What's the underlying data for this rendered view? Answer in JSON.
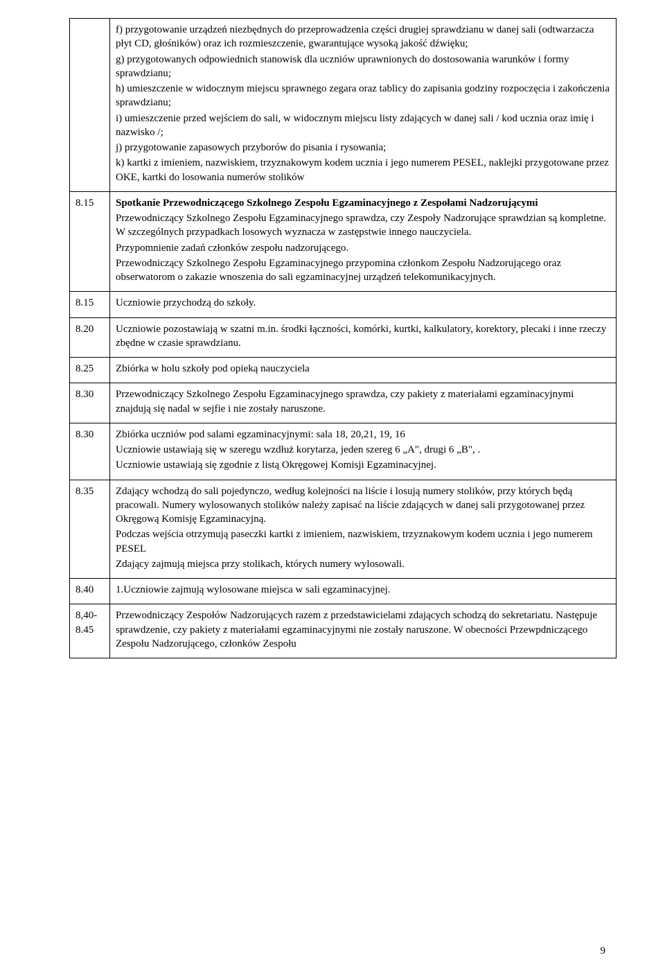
{
  "rows": [
    {
      "time": "",
      "paras": [
        "f) przygotowanie urządzeń niezbędnych do przeprowadzenia części drugiej sprawdzianu w danej sali (odtwarzacza płyt CD, głośników) oraz ich rozmieszczenie, gwarantujące wysoką jakość dźwięku;",
        "g) przygotowanych odpowiednich stanowisk dla uczniów uprawnionych do dostosowania warunków i formy sprawdzianu;",
        "h) umieszczenie w widocznym miejscu sprawnego zegara oraz tablicy  do zapisania godziny rozpoczęcia i zakończenia sprawdzianu;",
        "i) umieszczenie przed wejściem do sali, w widocznym miejscu listy zdających w danej sali  / kod ucznia oraz imię i nazwisko /;",
        "j) przygotowanie  zapasowych przyborów do pisania i rysowania;",
        "k) kartki z imieniem, nazwiskiem, trzyznakowym kodem ucznia i jego numerem PESEL, naklejki przygotowane przez OKE, kartki do losowania numerów stolików"
      ]
    },
    {
      "time": "8.15",
      "bold_lead": "Spotkanie Przewodniczącego Szkolnego Zespołu Egzaminacyjnego z Zespołami Nadzorującymi",
      "paras": [
        "Przewodniczący Szkolnego Zespołu Egzaminacyjnego sprawdza, czy Zespoły Nadzorujące sprawdzian są kompletne. W szczególnych przypadkach losowych wyznacza w zastępstwie innego nauczyciela.",
        "Przypomnienie zadań członków zespołu nadzorującego.",
        "Przewodniczący Szkolnego Zespołu Egzaminacyjnego przypomina członkom Zespołu Nadzorującego oraz obserwatorom o zakazie wnoszenia do sali egzaminacyjnej urządzeń telekomunikacyjnych."
      ]
    },
    {
      "time": "8.15",
      "paras": [
        "Uczniowie przychodzą do szkoły."
      ]
    },
    {
      "time": "8.20",
      "paras": [
        "Uczniowie pozostawiają w szatni m.in. środki łączności, komórki, kurtki, kalkulatory, korektory, plecaki i inne rzeczy zbędne w czasie sprawdzianu."
      ]
    },
    {
      "time": "8.25",
      "paras": [
        "Zbiórka w holu szkoły pod opieką nauczyciela"
      ]
    },
    {
      "time": "8.30",
      "paras": [
        "Przewodniczący Szkolnego Zespołu Egzaminacyjnego sprawdza, czy pakiety z materiałami egzaminacyjnymi znajdują się nadal w sejfie i nie zostały naruszone."
      ]
    },
    {
      "time": "8.30",
      "paras": [
        "Zbiórka uczniów pod salami egzaminacyjnymi:  sala 18, 20,21, 19, 16",
        "Uczniowie ustawiają się w szeregu wzdłuż korytarza, jeden szereg 6 „A\", drugi 6 „B\", .",
        "Uczniowie ustawiają się  zgodnie z listą Okręgowej Komisji Egzaminacyjnej."
      ]
    },
    {
      "time": "8.35",
      "paras": [
        "Zdający wchodzą do sali pojedynczo, według kolejności na liście i losują numery stolików, przy których będą pracowali.  Numery wylosowanych stolików należy zapisać na liście zdających w danej sali przygotowanej przez Okręgową Komisję Egzaminacyjną.",
        "Podczas wejścia otrzymują paseczki kartki z imieniem, nazwiskiem, trzyznakowym kodem ucznia i jego numerem PESEL",
        "Zdający zajmują miejsca przy stolikach, których numery wylosowali."
      ]
    },
    {
      "time": "8.40",
      "paras": [
        "1.Uczniowie zajmują wylosowane  miejsca w sali egzaminacyjnej."
      ]
    },
    {
      "time": "8,40-8.45",
      "paras": [
        "Przewodniczący Zespołów  Nadzorujących  razem z przedstawicielami zdających schodzą do sekretariatu.  Następuje sprawdzenie, czy pakiety z materiałami egzaminacyjnymi nie zostały naruszone.  W obecności  Przewpdniczącego Zespołu Nadzorującego, członków Zespołu"
      ]
    }
  ],
  "page_number": "9"
}
